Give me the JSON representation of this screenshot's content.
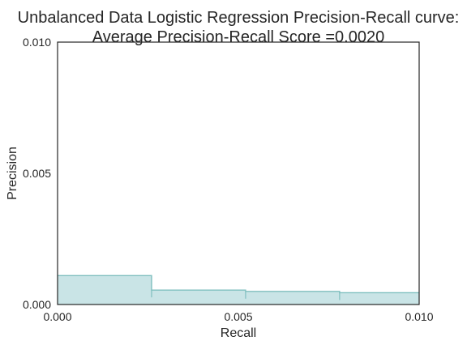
{
  "chart_data": {
    "type": "area",
    "title_line1": "Unbalanced Data Logistic Regression Precision-Recall curve:",
    "title_line2": "Average Precision-Recall Score =0.0020",
    "xlabel": "Recall",
    "ylabel": "Precision",
    "xlim": [
      0.0,
      0.01
    ],
    "ylim": [
      0.0,
      0.01
    ],
    "xticks": [
      "0.000",
      "0.005",
      "0.010"
    ],
    "yticks": [
      "0.000",
      "0.005",
      "0.010"
    ],
    "xtick_values": [
      0.0,
      0.005,
      0.01
    ],
    "ytick_values": [
      0.0,
      0.005,
      0.01
    ],
    "grid": false,
    "step_where": "post",
    "series": [
      {
        "x": [
          0.0,
          0.0026,
          0.0052,
          0.0078,
          0.01
        ],
        "y": [
          0.0011,
          0.00055,
          0.0005,
          0.00045,
          0.00045
        ]
      }
    ],
    "fill_color": "#c9e4e6",
    "line_color": "#7fbfbf"
  }
}
